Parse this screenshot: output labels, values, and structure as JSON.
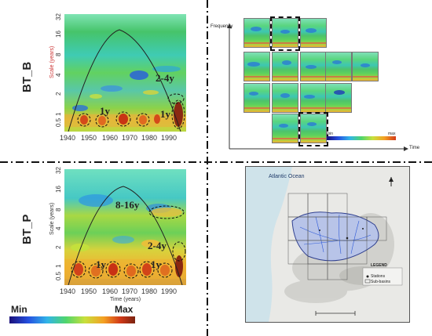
{
  "panels": {
    "top_left": {
      "label": "BT_B",
      "y_axis_title": "Scale (years)",
      "y_ticks": [
        "0.5",
        "1",
        "2",
        "4",
        "8",
        "16",
        "32"
      ],
      "x_ticks": [
        "1940",
        "1950",
        "1960",
        "1970",
        "1980",
        "1990"
      ],
      "annotations": [
        "2-4y",
        "1y",
        "1y"
      ]
    },
    "bottom_left": {
      "label": "BT_P",
      "y_axis_title": "Scale (years)",
      "y_ticks": [
        "0.5",
        "1",
        "2",
        "4",
        "8",
        "16",
        "32"
      ],
      "x_ticks": [
        "1940",
        "1950",
        "1960",
        "1970",
        "1980",
        "1990"
      ],
      "x_axis_title": "Time (years)",
      "annotations": [
        "8-16y",
        "2-4y",
        "1y",
        "1y"
      ]
    },
    "top_right": {
      "y_axis_title": "Frequency",
      "x_axis_title": "Time",
      "colorbar_min": "min",
      "colorbar_max": "max"
    },
    "map": {
      "ocean_label": "Atlantic Ocean",
      "legend_title": "LEGEND",
      "legend_items": [
        "Stations",
        "Sub-basins"
      ]
    }
  },
  "colorbar": {
    "min_label": "Min",
    "max_label": "Max"
  }
}
